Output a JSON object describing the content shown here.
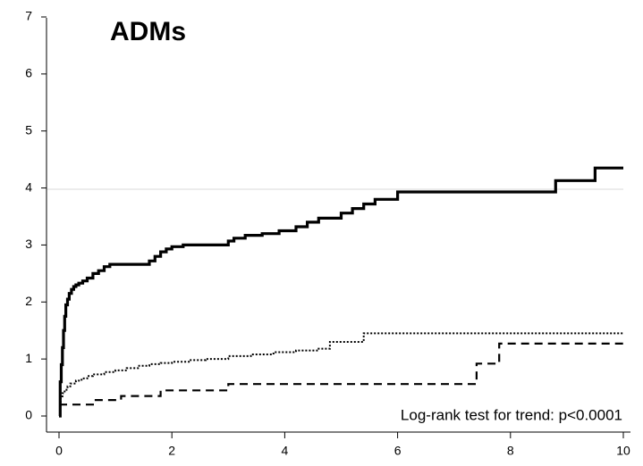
{
  "chart_data": {
    "type": "line",
    "title": "ADMs",
    "annotation": "Log-rank test for trend: p<0.0001",
    "xlim": [
      0,
      10
    ],
    "ylim": [
      0,
      7
    ],
    "x_ticks": [
      "0",
      "2",
      "4",
      "6",
      "8",
      "10"
    ],
    "y_ticks": [
      "0",
      "1",
      "2",
      "3",
      "4",
      "5",
      "6",
      "7"
    ],
    "grid": "horizontal line at y=4 only",
    "legend": "none",
    "series": [
      {
        "style": "solid",
        "step": true,
        "x": [
          0,
          0.02,
          0.04,
          0.06,
          0.08,
          0.1,
          0.12,
          0.15,
          0.18,
          0.22,
          0.26,
          0.3,
          0.35,
          0.42,
          0.5,
          0.6,
          0.7,
          0.8,
          0.9,
          1.0,
          1.1,
          1.6,
          1.7,
          1.8,
          1.9,
          2.0,
          2.2,
          3.0,
          3.1,
          3.3,
          3.6,
          3.9,
          4.2,
          4.4,
          4.6,
          5.0,
          5.2,
          5.4,
          5.6,
          6.0,
          7.0,
          8.7,
          8.8,
          9.4,
          9.5,
          10.0
        ],
        "y": [
          0,
          0.6,
          0.9,
          1.2,
          1.5,
          1.75,
          1.95,
          2.05,
          2.15,
          2.22,
          2.27,
          2.3,
          2.33,
          2.37,
          2.42,
          2.5,
          2.55,
          2.62,
          2.66,
          2.66,
          2.66,
          2.72,
          2.8,
          2.88,
          2.93,
          2.97,
          3.0,
          3.07,
          3.12,
          3.17,
          3.2,
          3.25,
          3.32,
          3.4,
          3.47,
          3.56,
          3.64,
          3.72,
          3.8,
          3.93,
          3.93,
          3.93,
          4.13,
          4.13,
          4.35,
          4.35
        ]
      },
      {
        "style": "dotted",
        "step": true,
        "x": [
          0,
          0.03,
          0.06,
          0.1,
          0.15,
          0.2,
          0.3,
          0.4,
          0.5,
          0.6,
          0.8,
          1.0,
          1.2,
          1.4,
          1.6,
          1.8,
          2.0,
          2.3,
          2.6,
          3.0,
          3.4,
          3.8,
          4.2,
          4.6,
          4.8,
          5.0,
          5.4,
          6.0,
          8.0,
          10.0
        ],
        "y": [
          0.2,
          0.32,
          0.4,
          0.46,
          0.52,
          0.57,
          0.62,
          0.66,
          0.7,
          0.73,
          0.77,
          0.8,
          0.84,
          0.88,
          0.91,
          0.93,
          0.95,
          0.98,
          1.0,
          1.05,
          1.08,
          1.12,
          1.15,
          1.18,
          1.3,
          1.3,
          1.45,
          1.45,
          1.45,
          1.45
        ]
      },
      {
        "style": "dashed",
        "step": true,
        "x": [
          0,
          0.4,
          0.6,
          1.1,
          1.7,
          1.8,
          2.9,
          3.0,
          4.5,
          7.3,
          7.4,
          7.7,
          7.8,
          9.0,
          10.0
        ],
        "y": [
          0.2,
          0.2,
          0.28,
          0.35,
          0.35,
          0.45,
          0.45,
          0.56,
          0.56,
          0.56,
          0.92,
          0.92,
          1.27,
          1.27,
          1.27
        ]
      }
    ]
  }
}
